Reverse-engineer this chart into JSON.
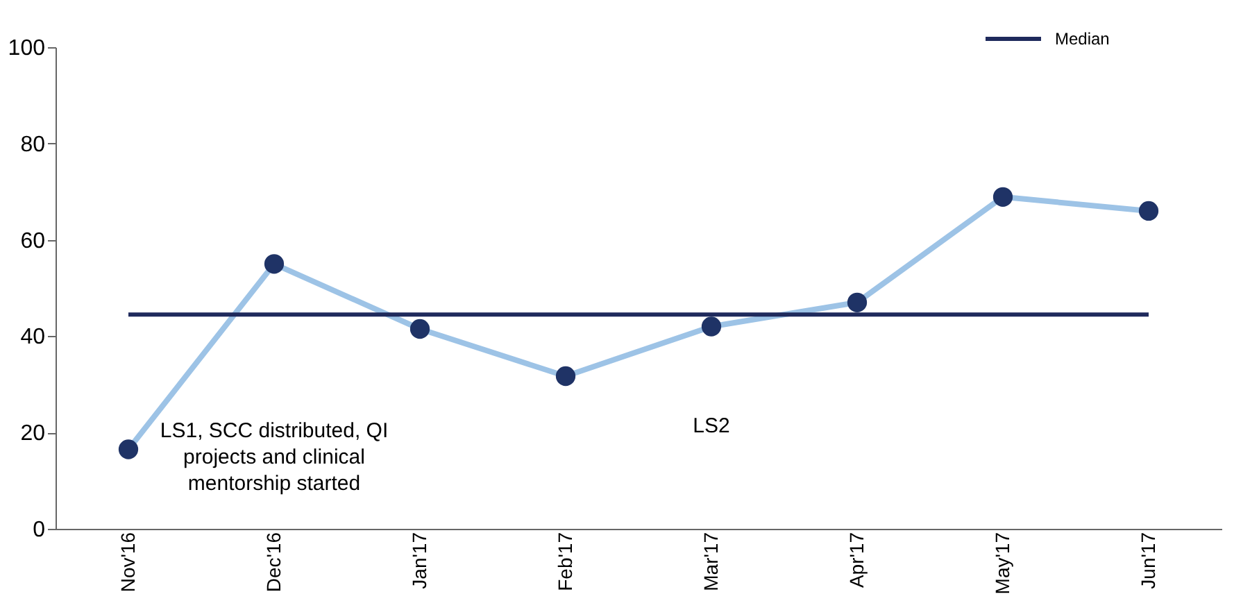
{
  "chart_data": {
    "type": "line",
    "categories": [
      "Nov'16",
      "Dec'16",
      "Jan'17",
      "Feb'17",
      "Mar'17",
      "Apr'17",
      "May'17",
      "Jun'17"
    ],
    "series": [
      {
        "color": "#9dc3e6",
        "values": [
          16.5,
          55,
          41.5,
          31.7,
          42,
          47,
          68.9,
          66
        ],
        "marker": "circle"
      }
    ],
    "ylim": [
      0,
      100
    ],
    "yticks": [
      0,
      20,
      40,
      60,
      80,
      100
    ],
    "ref_lines": [
      {
        "axis": "y",
        "value": 44.5,
        "label": "Median",
        "color": "#1f2a5c",
        "line_style": "solid"
      }
    ],
    "annotations": [
      "LS1, SCC distributed, QI projects and clinical mentorship started",
      "LS2"
    ],
    "legend": "top right",
    "grid": false,
    "line_style": "solid"
  }
}
